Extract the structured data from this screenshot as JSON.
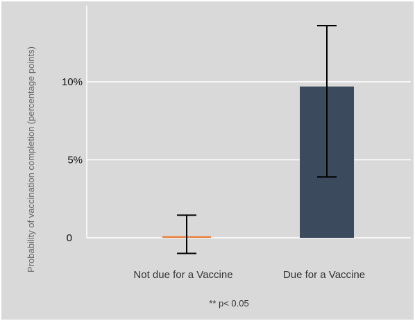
{
  "chart_data": {
    "type": "bar",
    "categories": [
      "Not due for a Vaccine",
      "Due for a Vaccine"
    ],
    "values": [
      0.1,
      9.7
    ],
    "error_bars": [
      {
        "low": -1.0,
        "high": 1.45
      },
      {
        "low": 3.9,
        "high": 13.6
      }
    ],
    "ylabel": "Probability of vaccination completion (percentage points)",
    "yticks": [
      {
        "value": 0,
        "label": "0"
      },
      {
        "value": 5,
        "label": "5%"
      },
      {
        "value": 10,
        "label": "10%"
      }
    ],
    "ylim": [
      -1.5,
      15
    ],
    "grid": true,
    "footnote": "** p< 0.05",
    "colors": {
      "background": "#d9d9d9",
      "grid": "#ffffff",
      "bar_not_due": "#ed7d31",
      "bar_due": "#3b4a5c",
      "error_bar": "#000000"
    }
  }
}
